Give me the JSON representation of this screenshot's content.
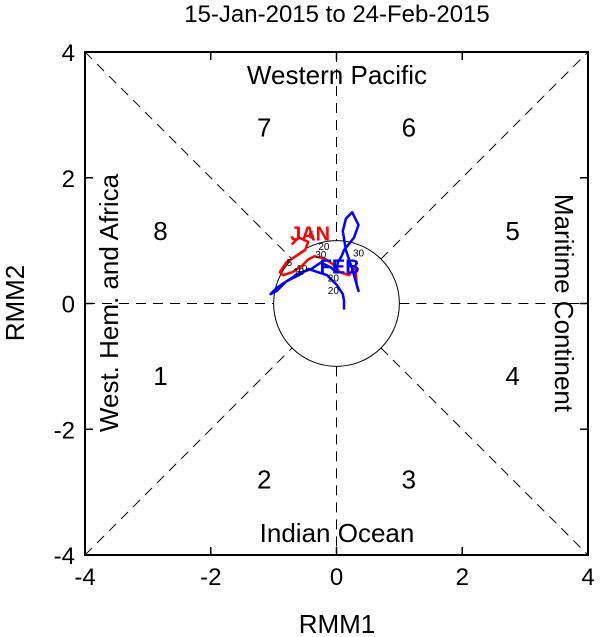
{
  "chart_data": {
    "type": "line",
    "title": "15-Jan-2015 to 24-Feb-2015",
    "xlabel": "RMM1",
    "ylabel": "RMM2",
    "xlim": [
      -4,
      4
    ],
    "ylim": [
      -4,
      4
    ],
    "xticks": [
      "-4",
      "-2",
      "0",
      "2",
      "4"
    ],
    "yticks": [
      "-4",
      "-2",
      "0",
      "2",
      "4"
    ],
    "regions": {
      "top": "Western Pacific",
      "bottom": "Indian Ocean",
      "left": "West. Hem. and Africa",
      "right": "Maritime Continent"
    },
    "phases": [
      {
        "label": "1",
        "x": -2.8,
        "y": -1.15
      },
      {
        "label": "2",
        "x": -1.15,
        "y": -2.8
      },
      {
        "label": "3",
        "x": 1.15,
        "y": -2.8
      },
      {
        "label": "4",
        "x": 2.8,
        "y": -1.15
      },
      {
        "label": "5",
        "x": 2.8,
        "y": 1.15
      },
      {
        "label": "6",
        "x": 1.15,
        "y": 2.8
      },
      {
        "label": "7",
        "x": -1.15,
        "y": 2.8
      },
      {
        "label": "8",
        "x": -2.8,
        "y": 1.15
      }
    ],
    "series": [
      {
        "name": "JAN",
        "color": "#ff0000",
        "x": [
          -0.7,
          -0.6,
          -0.45,
          -0.5,
          -0.65,
          -0.8,
          -0.9,
          -0.85,
          -0.7,
          -0.55,
          -0.45,
          -0.35,
          -0.2,
          -0.05,
          0.05,
          0.2,
          0.3,
          0.32,
          0.35
        ],
        "y": [
          0.95,
          1.05,
          0.98,
          0.85,
          0.75,
          0.65,
          0.5,
          0.45,
          0.5,
          0.6,
          0.7,
          0.75,
          0.72,
          0.62,
          0.5,
          0.45,
          0.6,
          0.3,
          0.2
        ]
      },
      {
        "name": "FEB",
        "color": "#0000ff",
        "x": [
          0.35,
          0.25,
          0.15,
          0.1,
          0.15,
          0.25,
          0.35,
          0.28,
          0.2,
          0.12,
          0.08,
          0.02,
          0.0,
          -0.1,
          -0.25,
          -0.4,
          -0.6,
          -0.8,
          -0.95,
          -1.05,
          -0.95,
          -0.8,
          -0.7,
          -0.6,
          -0.45,
          -0.3,
          -0.15,
          0.0,
          0.1,
          0.12,
          0.12
        ],
        "y": [
          0.2,
          0.55,
          0.85,
          1.15,
          1.35,
          1.45,
          1.25,
          1.05,
          0.95,
          0.85,
          0.75,
          0.65,
          0.5,
          0.58,
          0.65,
          0.55,
          0.48,
          0.35,
          0.2,
          0.15,
          0.25,
          0.35,
          0.4,
          0.45,
          0.55,
          0.5,
          0.45,
          0.3,
          0.15,
          0.05,
          -0.08
        ]
      }
    ],
    "month_labels": [
      {
        "text": "JAN",
        "color": "#ff0000",
        "x": -0.42,
        "y": 1.0
      },
      {
        "text": "FEB",
        "color": "#0000ff",
        "x": 0.05,
        "y": 0.48
      }
    ],
    "day_labels": [
      {
        "text": "30",
        "x": -0.25,
        "y": 0.72
      },
      {
        "text": "20",
        "x": -0.05,
        "y": 0.35
      },
      {
        "text": "10",
        "x": -0.55,
        "y": 0.5
      },
      {
        "text": "5",
        "x": -0.75,
        "y": 0.6
      },
      {
        "text": "5",
        "x": -0.4,
        "y": 1.03
      },
      {
        "text": "30",
        "x": 0.35,
        "y": 0.75
      },
      {
        "text": "20",
        "x": -0.2,
        "y": 0.85
      },
      {
        "text": "10",
        "x": -0.6,
        "y": 0.45
      },
      {
        "text": "20",
        "x": -0.05,
        "y": 0.15
      }
    ]
  }
}
